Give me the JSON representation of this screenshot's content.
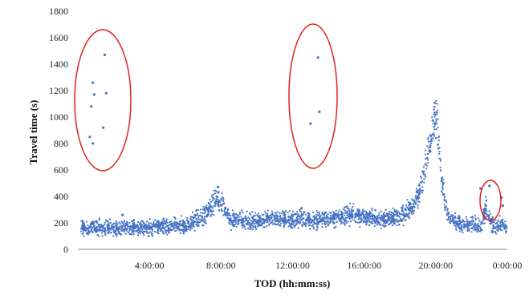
{
  "chart_data": {
    "type": "scatter",
    "title": "",
    "xlabel": "TOD (hh:mm:ss)",
    "ylabel": "Travel time (s)",
    "xlim": [
      "0:00:00",
      "24:00:00"
    ],
    "ylim": [
      0,
      1800
    ],
    "yticks": [
      0,
      200,
      400,
      600,
      800,
      1000,
      1200,
      1400,
      1600,
      1800
    ],
    "xticks": [
      "4:00:00",
      "8:00:00",
      "12:00:00",
      "16:00:00",
      "20:00:00",
      "0:00:00"
    ],
    "grid": false,
    "legend": "none",
    "point_color": "#4472C4",
    "outlier_ellipse_color": "#E0211F",
    "series": [
      {
        "points": [
          [
            "0:40:00",
            850
          ],
          [
            "0:50:00",
            800
          ],
          [
            "0:45:00",
            1080
          ],
          [
            "0:50:00",
            1260
          ],
          [
            "0:55:00",
            1170
          ],
          [
            "1:25:00",
            920
          ],
          [
            "1:35:00",
            1180
          ],
          [
            "1:30:00",
            1470
          ],
          [
            "13:00:00",
            950
          ],
          [
            "13:25:00",
            1450
          ],
          [
            "13:30:00",
            1040
          ],
          [
            "23:40:00",
            390
          ],
          [
            "23:45:00",
            330
          ],
          [
            "2:30:00",
            260
          ],
          [
            "7:50:00",
            470
          ],
          [
            "12:30:00",
            310
          ],
          [
            "19:05:00",
            420
          ],
          [
            "22:30:00",
            460
          ],
          [
            "23:00:00",
            480
          ]
        ],
        "trend_profile": [
          [
            "0:10:00",
            165
          ],
          [
            "2:00:00",
            160
          ],
          [
            "4:00:00",
            165
          ],
          [
            "6:00:00",
            180
          ],
          [
            "7:00:00",
            250
          ],
          [
            "7:40:00",
            370
          ],
          [
            "8:00:00",
            360
          ],
          [
            "8:30:00",
            230
          ],
          [
            "10:00:00",
            220
          ],
          [
            "12:00:00",
            230
          ],
          [
            "13:00:00",
            220
          ],
          [
            "14:00:00",
            225
          ],
          [
            "15:00:00",
            260
          ],
          [
            "16:00:00",
            250
          ],
          [
            "17:00:00",
            220
          ],
          [
            "18:00:00",
            250
          ],
          [
            "18:45:00",
            330
          ],
          [
            "19:15:00",
            500
          ],
          [
            "19:40:00",
            780
          ],
          [
            "19:55:00",
            1000
          ],
          [
            "20:05:00",
            950
          ],
          [
            "20:20:00",
            500
          ],
          [
            "20:45:00",
            230
          ],
          [
            "21:30:00",
            190
          ],
          [
            "22:30:00",
            180
          ],
          [
            "22:50:00",
            310
          ],
          [
            "23:05:00",
            200
          ],
          [
            "23:59:00",
            160
          ]
        ]
      }
    ]
  }
}
